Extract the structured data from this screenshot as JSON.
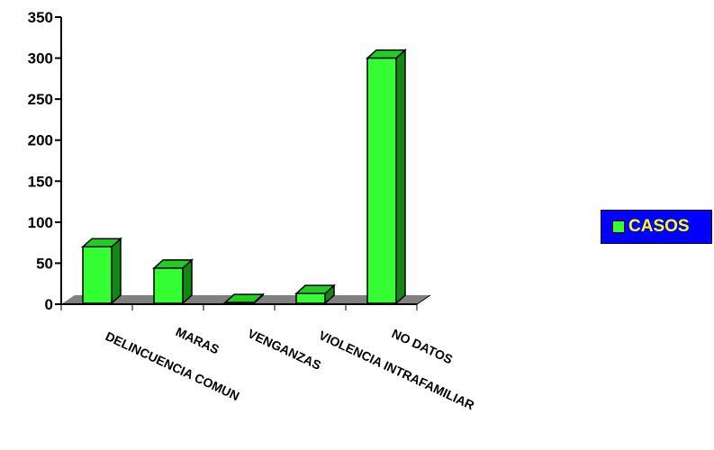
{
  "chart_data": {
    "type": "bar",
    "categories": [
      "DELINCUENCIA COMUN",
      "MARAS",
      "VENGANZAS",
      "VIOLENCIA INTRAFAMILIAR",
      "NO DATOS"
    ],
    "series": [
      {
        "name": "CASOS",
        "values": [
          70,
          44,
          2,
          13,
          300
        ]
      }
    ],
    "ylim": [
      0,
      350
    ],
    "yticks": [
      "0",
      "50",
      "100",
      "150",
      "200",
      "250",
      "300",
      "350"
    ],
    "ytick_values": [
      0,
      50,
      100,
      150,
      200,
      250,
      300,
      350
    ],
    "grid": false,
    "legend_position": "right",
    "colors": {
      "bar_front": "#33ff33",
      "bar_top": "#22cc22",
      "bar_side": "#118811",
      "floor": "#808080",
      "legend_bg": "#0000ff",
      "legend_text": "#ffff00"
    }
  }
}
